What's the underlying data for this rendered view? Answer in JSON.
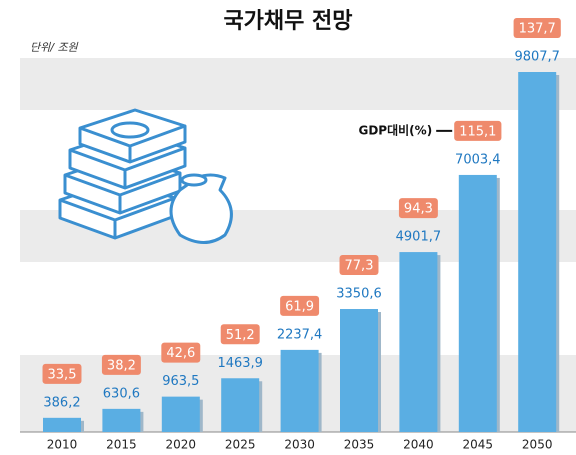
{
  "chart_data": {
    "type": "bar",
    "title": "국가채무 전망",
    "unit_label": "단위/ 조원",
    "categories": [
      "2010",
      "2015",
      "2020",
      "2025",
      "2030",
      "2035",
      "2040",
      "2045",
      "2050"
    ],
    "series": [
      {
        "color": "#5aaee3",
        "values": [
          386.2,
          630.6,
          963.5,
          1463.9,
          2237.4,
          3350.6,
          4901.7,
          7003.4,
          9807.7
        ],
        "value_labels": [
          "386,2",
          "630,6",
          "963,5",
          "1463,9",
          "2237,4",
          "3350,6",
          "4901,7",
          "7003,4",
          "9807,7"
        ]
      },
      {
        "name": "GDP대비(%)",
        "color": "#ef8a6c",
        "values": [
          33.5,
          38.2,
          42.6,
          51.2,
          61.9,
          77.3,
          94.3,
          115.1,
          137.7
        ],
        "value_labels": [
          "33,5",
          "38,2",
          "42,6",
          "51,2",
          "61,9",
          "77,3",
          "94,3",
          "115,1",
          "137,7"
        ]
      }
    ]
  }
}
